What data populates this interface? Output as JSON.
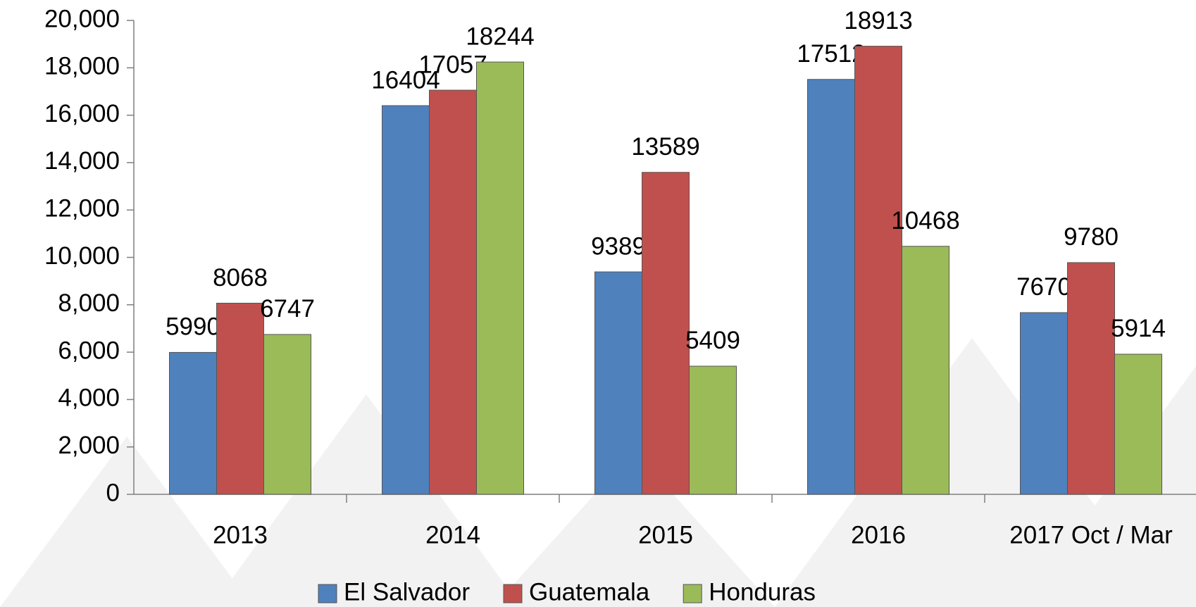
{
  "chart_data": {
    "type": "bar",
    "categories": [
      "2013",
      "2014",
      "2015",
      "2016",
      "2017 Oct / Mar"
    ],
    "series": [
      {
        "name": "El Salvador",
        "color": "#4f81bd",
        "values": [
          5990,
          16404,
          9389,
          17512,
          7670
        ]
      },
      {
        "name": "Guatemala",
        "color": "#c0504d",
        "values": [
          8068,
          17057,
          13589,
          18913,
          9780
        ]
      },
      {
        "name": "Honduras",
        "color": "#9bbb59",
        "values": [
          6747,
          18244,
          5409,
          10468,
          5914
        ]
      }
    ],
    "ylim": [
      0,
      20000
    ],
    "yticks": [
      0,
      {
        "value": 2000,
        "label": "2,000"
      },
      {
        "value": 4000,
        "label": "4,000"
      },
      {
        "value": 6000,
        "label": "6,000"
      },
      {
        "value": 8000,
        "label": "8,000"
      },
      {
        "value": 10000,
        "label": "10,000"
      },
      {
        "value": 12000,
        "label": "12,000"
      },
      {
        "value": 14000,
        "label": "14,000"
      },
      {
        "value": 16000,
        "label": "16,000"
      },
      {
        "value": 18000,
        "label": "18,000"
      },
      {
        "value": 20000,
        "label": "20,000"
      }
    ],
    "legend": "bottom"
  }
}
